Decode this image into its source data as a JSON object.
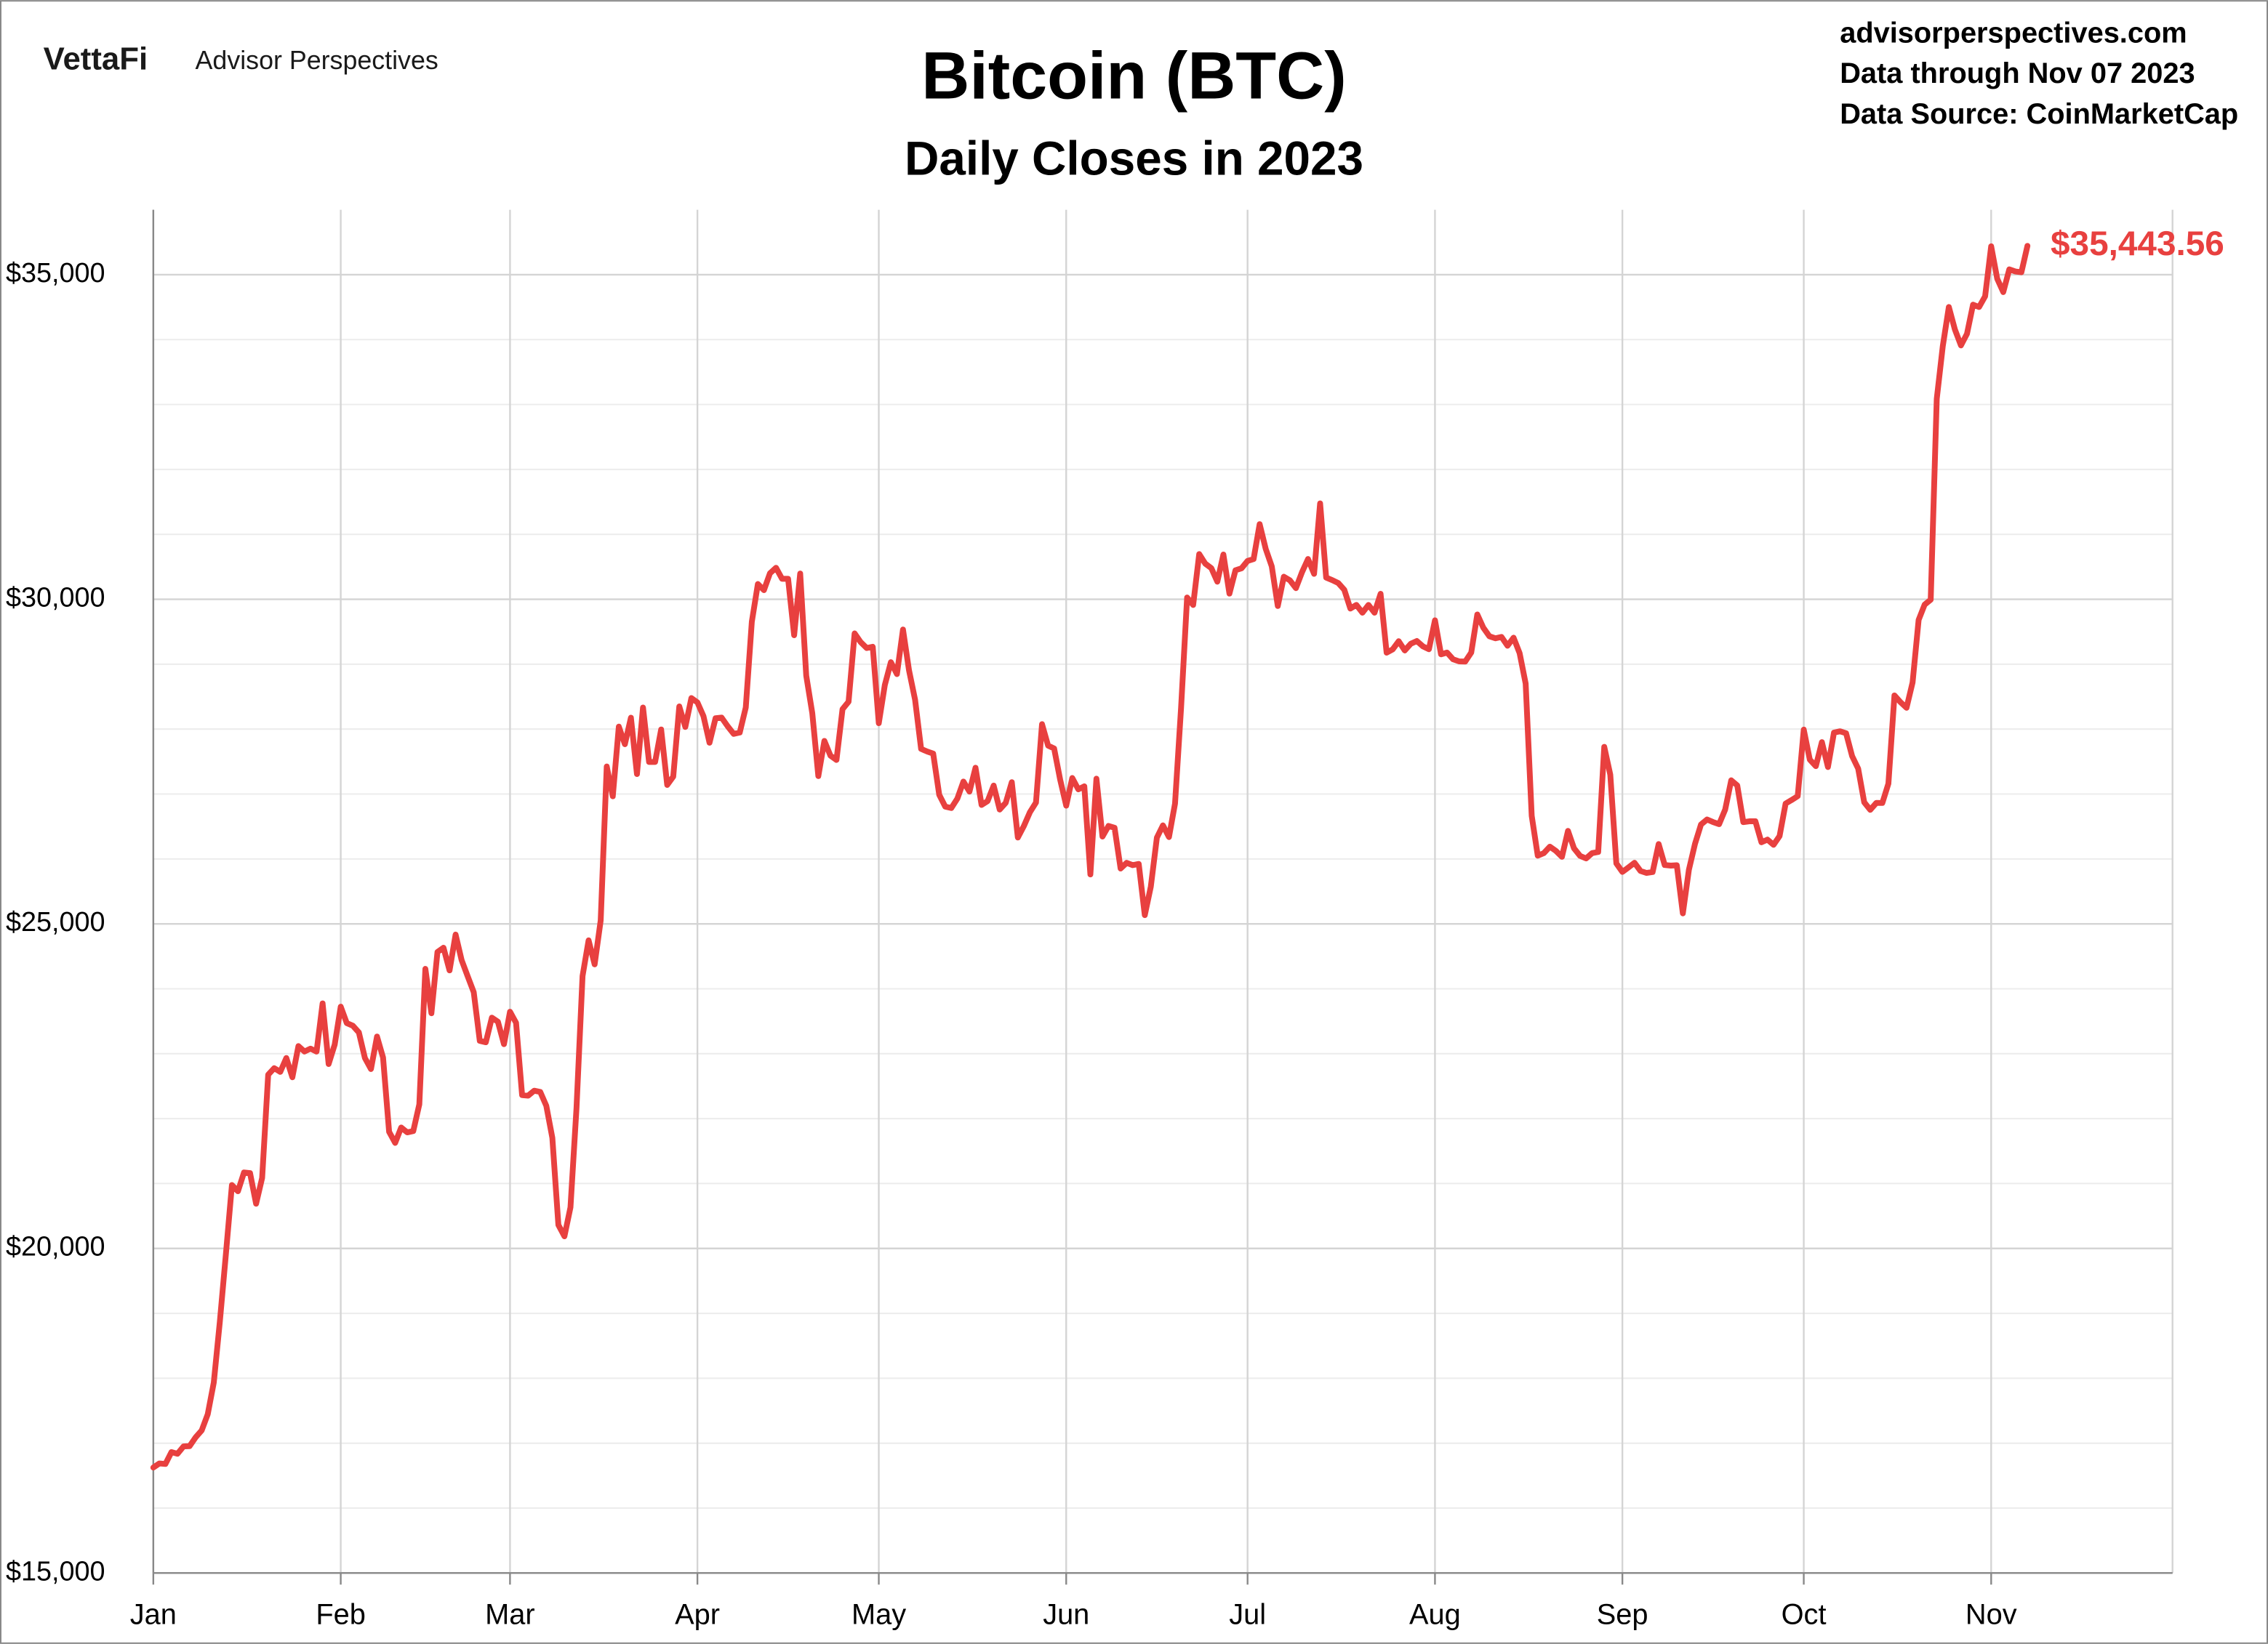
{
  "brand": {
    "logo": "VettaFi",
    "name": "Advisor Perspectives"
  },
  "source": {
    "site": "advisorperspectives.com",
    "through": "Data through Nov 07 2023",
    "provider": "Data Source: CoinMarketCap"
  },
  "chart_data": {
    "type": "line",
    "title": "Bitcoin (BTC)",
    "subtitle": "Daily Closes in 2023",
    "color": "#e8403f",
    "grid": true,
    "ylim": [
      15000,
      36000
    ],
    "yticks": [
      {
        "value": 15000,
        "label": "$15,000"
      },
      {
        "value": 20000,
        "label": "$20,000"
      },
      {
        "value": 25000,
        "label": "$25,000"
      },
      {
        "value": 30000,
        "label": "$30,000"
      },
      {
        "value": 35000,
        "label": "$35,000"
      }
    ],
    "yminorticks": [
      16000,
      17000,
      18000,
      19000,
      21000,
      22000,
      23000,
      24000,
      26000,
      27000,
      28000,
      29000,
      31000,
      32000,
      33000,
      34000
    ],
    "categories": [
      "Jan",
      null,
      null,
      null,
      null,
      null,
      null,
      null,
      null,
      null,
      null,
      null,
      null,
      null,
      null,
      null,
      null,
      null,
      null,
      null,
      null,
      null,
      null,
      null,
      null,
      null,
      null,
      null,
      null,
      null,
      null,
      "Feb",
      null,
      null,
      null,
      null,
      null,
      null,
      null,
      null,
      null,
      null,
      null,
      null,
      null,
      null,
      null,
      null,
      null,
      null,
      null,
      null,
      null,
      null,
      null,
      null,
      null,
      null,
      null,
      "Mar",
      null,
      null,
      null,
      null,
      null,
      null,
      null,
      null,
      null,
      null,
      null,
      null,
      null,
      null,
      null,
      null,
      null,
      null,
      null,
      null,
      null,
      null,
      null,
      null,
      null,
      null,
      null,
      null,
      null,
      null,
      "Apr",
      null,
      null,
      null,
      null,
      null,
      null,
      null,
      null,
      null,
      null,
      null,
      null,
      null,
      null,
      null,
      null,
      null,
      null,
      null,
      null,
      null,
      null,
      null,
      null,
      null,
      null,
      null,
      null,
      null,
      "May",
      null,
      null,
      null,
      null,
      null,
      null,
      null,
      null,
      null,
      null,
      null,
      null,
      null,
      null,
      null,
      null,
      null,
      null,
      null,
      null,
      null,
      null,
      null,
      null,
      null,
      null,
      null,
      null,
      null,
      null,
      "Jun",
      null,
      null,
      null,
      null,
      null,
      null,
      null,
      null,
      null,
      null,
      null,
      null,
      null,
      null,
      null,
      null,
      null,
      null,
      null,
      null,
      null,
      null,
      null,
      null,
      null,
      null,
      null,
      null,
      null,
      "Jul",
      null,
      null,
      null,
      null,
      null,
      null,
      null,
      null,
      null,
      null,
      null,
      null,
      null,
      null,
      null,
      null,
      null,
      null,
      null,
      null,
      null,
      null,
      null,
      null,
      null,
      null,
      null,
      null,
      null,
      null,
      "Aug",
      null,
      null,
      null,
      null,
      null,
      null,
      null,
      null,
      null,
      null,
      null,
      null,
      null,
      null,
      null,
      null,
      null,
      null,
      null,
      null,
      null,
      null,
      null,
      null,
      null,
      null,
      null,
      null,
      null,
      null,
      "Sep",
      null,
      null,
      null,
      null,
      null,
      null,
      null,
      null,
      null,
      null,
      null,
      null,
      null,
      null,
      null,
      null,
      null,
      null,
      null,
      null,
      null,
      null,
      null,
      null,
      null,
      null,
      null,
      null,
      null,
      "Oct",
      null,
      null,
      null,
      null,
      null,
      null,
      null,
      null,
      null,
      null,
      null,
      null,
      null,
      null,
      null,
      null,
      null,
      null,
      null,
      null,
      null,
      null,
      null,
      null,
      null,
      null,
      null,
      null,
      null,
      null,
      "Nov",
      null,
      null,
      null,
      null,
      null,
      null,
      null,
      null,
      null,
      null,
      null,
      null,
      null,
      null,
      null,
      null,
      null,
      null,
      null,
      null,
      null,
      null,
      null,
      null,
      null,
      null,
      null,
      null,
      null,
      null
    ],
    "values": [
      16625,
      16688,
      16680,
      16863,
      16837,
      16951,
      16955,
      17091,
      17197,
      17446,
      17934,
      18869,
      19910,
      20977,
      20881,
      21170,
      21161,
      20689,
      21086,
      22676,
      22777,
      22720,
      22934,
      22637,
      23117,
      23033,
      23078,
      23032,
      23775,
      22841,
      23139,
      23724,
      23471,
      23431,
      23327,
      22933,
      22763,
      23264,
      22940,
      21797,
      21626,
      21863,
      21788,
      21808,
      22220,
      24307,
      23623,
      24566,
      24632,
      24283,
      24835,
      24440,
      24192,
      23947,
      23198,
      23176,
      23555,
      23492,
      23147,
      23646,
      23476,
      22362,
      22354,
      22430,
      22411,
      22198,
      21705,
      20363,
      20187,
      20633,
      22163,
      24197,
      24746,
      24376,
      25052,
      27424,
      26965,
      28038,
      27767,
      28175,
      27307,
      28333,
      27493,
      27494,
      27994,
      27140,
      27268,
      28349,
      28033,
      28478,
      28411,
      28199,
      27790,
      28168,
      28177,
      28044,
      27926,
      27947,
      28333,
      29653,
      30235,
      30140,
      30400,
      30485,
      30315,
      30316,
      29446,
      30397,
      28823,
      28246,
      27276,
      27818,
      27592,
      27525,
      28307,
      28422,
      29474,
      29340,
      29249,
      29268,
      28091,
      28680,
      29031,
      28847,
      29534,
      28905,
      28455,
      27695,
      27655,
      27622,
      26988,
      26805,
      26784,
      26930,
      27192,
      27037,
      27405,
      26832,
      26891,
      27130,
      26761,
      26865,
      27182,
      26330,
      26507,
      26720,
      26868,
      28076,
      27746,
      27702,
      27221,
      26821,
      27247,
      27072,
      27119,
      25761,
      27237,
      26345,
      26508,
      26480,
      25852,
      25940,
      25904,
      25923,
      25134,
      25575,
      26328,
      26517,
      26337,
      26852,
      28327,
      30027,
      29912,
      30696,
      30549,
      30480,
      30271,
      30689,
      30087,
      30447,
      30477,
      30590,
      30620,
      31157,
      30777,
      30508,
      29896,
      30347,
      30292,
      30171,
      30415,
      30620,
      30392,
      31477,
      30334,
      30295,
      30250,
      30146,
      29857,
      29913,
      29793,
      29913,
      29793,
      30084,
      29177,
      29228,
      29354,
      29211,
      29315,
      29357,
      29275,
      29230,
      29676,
      29152,
      29179,
      29075,
      29043,
      29040,
      29180,
      29766,
      29561,
      29430,
      29398,
      29420,
      29284,
      29408,
      29170,
      28701,
      26664,
      26050,
      26089,
      26189,
      26124,
      26032,
      26432,
      26163,
      26047,
      26008,
      26090,
      26107,
      27727,
      27297,
      25931,
      25800,
      25869,
      25941,
      25815,
      25784,
      25798,
      26229,
      25906,
      25897,
      25903,
      25161,
      25833,
      26229,
      26530,
      26608,
      26568,
      26536,
      26760,
      27211,
      27133,
      26567,
      26580,
      26580,
      26257,
      26298,
      26217,
      26352,
      26853,
      26908,
      26967,
      27992,
      27530,
      27429,
      27799,
      27416,
      27946,
      27966,
      27936,
      27584,
      27391,
      26873,
      26756,
      26863,
      26862,
      27160,
      28519,
      28415,
      28328,
      28719,
      29682,
      29918,
      29993,
      33087,
      33901,
      34502,
      34156,
      33910,
      34089,
      34538,
      34502,
      34667,
      35437,
      34938,
      34732,
      35082,
      35049,
      35037,
      35443.56,
      null,
      null,
      null,
      null,
      null,
      null,
      null,
      null,
      null,
      null,
      null,
      null,
      null,
      null,
      null,
      null,
      null,
      null,
      null,
      null,
      null,
      null,
      null,
      null
    ],
    "value_labels": [
      null,
      null,
      null,
      null,
      null,
      null,
      null,
      null,
      null,
      null,
      null,
      null,
      null,
      null,
      null,
      null,
      null,
      null,
      null,
      null,
      null,
      null,
      null,
      null,
      null,
      null,
      null,
      null,
      null,
      null,
      null,
      null,
      null,
      null,
      null,
      null,
      null,
      null,
      null,
      null,
      null,
      null,
      null,
      null,
      null,
      null,
      null,
      null,
      null,
      null,
      null,
      null,
      null,
      null,
      null,
      null,
      null,
      null,
      null,
      null,
      null,
      null,
      null,
      null,
      null,
      null,
      null,
      null,
      null,
      null,
      null,
      null,
      null,
      null,
      null,
      null,
      null,
      null,
      null,
      null,
      null,
      null,
      null,
      null,
      null,
      null,
      null,
      null,
      null,
      null,
      null,
      null,
      null,
      null,
      null,
      null,
      null,
      null,
      null,
      null,
      null,
      null,
      null,
      null,
      null,
      null,
      null,
      null,
      null,
      null,
      null,
      null,
      null,
      null,
      null,
      null,
      null,
      null,
      null,
      null,
      null,
      null,
      null,
      null,
      null,
      null,
      null,
      null,
      null,
      null,
      null,
      null,
      null,
      null,
      null,
      null,
      null,
      null,
      null,
      null,
      null,
      null,
      null,
      null,
      null,
      null,
      null,
      null,
      null,
      null,
      null,
      null,
      null,
      null,
      null,
      null,
      null,
      null,
      null,
      null,
      null,
      null,
      null,
      null,
      null,
      null,
      null,
      null,
      null,
      null,
      null,
      null,
      null,
      null,
      null,
      null,
      null,
      null,
      null,
      null,
      null,
      null,
      null,
      null,
      null,
      null,
      null,
      null,
      null,
      null,
      null,
      null,
      null,
      null,
      null,
      null,
      null,
      null,
      null,
      null,
      null,
      null,
      null,
      null,
      null,
      null,
      null,
      null,
      null,
      null,
      null,
      null,
      null,
      null,
      null,
      null,
      null,
      null,
      null,
      null,
      null,
      null,
      null,
      null,
      null,
      null,
      null,
      null,
      null,
      null,
      null,
      null,
      null,
      null,
      null,
      null,
      null,
      null,
      null,
      null,
      null,
      null,
      null,
      null,
      null,
      null,
      null,
      null,
      null,
      null,
      null,
      null,
      null,
      null,
      null,
      null,
      null,
      null,
      null,
      null,
      null,
      null,
      null,
      null,
      null,
      null,
      null,
      null,
      null,
      null,
      null,
      null,
      null,
      null,
      null,
      null,
      null,
      null,
      null,
      null,
      null,
      null,
      null,
      null,
      null,
      null,
      null,
      null,
      null,
      null,
      null,
      null,
      null,
      null,
      null,
      null,
      null,
      null,
      null,
      null,
      null,
      null,
      null,
      null,
      null,
      null,
      null,
      null,
      null,
      null,
      "$35,443.56",
      null,
      null,
      null,
      null,
      null,
      null,
      null,
      null,
      null,
      null,
      null,
      null,
      null,
      null,
      null,
      null,
      null,
      null,
      null,
      null,
      null,
      null,
      null,
      null
    ]
  }
}
